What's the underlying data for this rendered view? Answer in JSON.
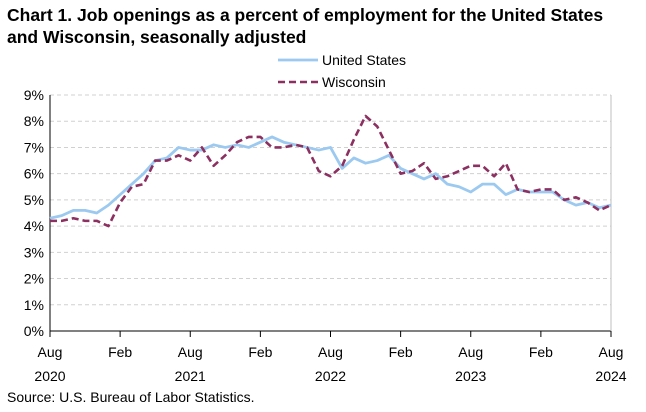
{
  "chart_data": {
    "type": "line",
    "title_line1": "Chart 1. Job openings as a percent of employment for the United States",
    "title_line2": "and Wisconsin, seasonally adjusted",
    "xlabel": "",
    "ylabel": "",
    "ylim": [
      0,
      9
    ],
    "yticks": [
      0,
      1,
      2,
      3,
      4,
      5,
      6,
      7,
      8,
      9
    ],
    "ytick_labels": [
      "0%",
      "1%",
      "2%",
      "3%",
      "4%",
      "5%",
      "6%",
      "7%",
      "8%",
      "9%"
    ],
    "x_ticks": [
      {
        "index": 0,
        "month": "Aug",
        "year": "2020"
      },
      {
        "index": 6,
        "month": "Feb",
        "year": ""
      },
      {
        "index": 12,
        "month": "Aug",
        "year": "2021"
      },
      {
        "index": 18,
        "month": "Feb",
        "year": ""
      },
      {
        "index": 24,
        "month": "Aug",
        "year": "2022"
      },
      {
        "index": 30,
        "month": "Feb",
        "year": ""
      },
      {
        "index": 36,
        "month": "Aug",
        "year": "2023"
      },
      {
        "index": 42,
        "month": "Feb",
        "year": ""
      },
      {
        "index": 48,
        "month": "Aug",
        "year": "2024"
      }
    ],
    "x_start": "Aug 2020",
    "x_end": "Aug 2024",
    "grid": true,
    "legend_position": "top-right",
    "series": [
      {
        "name": "United States",
        "style": "solid",
        "color": "#9cc9f0",
        "values": [
          4.3,
          4.4,
          4.6,
          4.6,
          4.5,
          4.8,
          5.2,
          5.6,
          6.0,
          6.5,
          6.6,
          7.0,
          6.9,
          6.9,
          7.1,
          7.0,
          7.1,
          7.0,
          7.2,
          7.4,
          7.2,
          7.1,
          7.0,
          6.9,
          7.0,
          6.2,
          6.6,
          6.4,
          6.5,
          6.7,
          6.2,
          6.0,
          5.8,
          6.0,
          5.6,
          5.5,
          5.3,
          5.6,
          5.6,
          5.2,
          5.4,
          5.3,
          5.3,
          5.3,
          5.0,
          4.8,
          4.9,
          4.7,
          4.8
        ]
      },
      {
        "name": "Wisconsin",
        "style": "dashed",
        "color": "#8b3060",
        "values": [
          4.2,
          4.2,
          4.3,
          4.2,
          4.2,
          4.0,
          4.9,
          5.5,
          5.6,
          6.5,
          6.5,
          6.7,
          6.5,
          7.0,
          6.3,
          6.7,
          7.2,
          7.4,
          7.4,
          7.0,
          7.0,
          7.1,
          7.0,
          6.1,
          5.9,
          6.3,
          7.3,
          8.2,
          7.8,
          6.9,
          6.0,
          6.1,
          6.4,
          5.8,
          5.9,
          6.1,
          6.3,
          6.3,
          5.9,
          6.4,
          5.4,
          5.3,
          5.4,
          5.4,
          5.0,
          5.1,
          4.9,
          4.6,
          4.8
        ]
      }
    ]
  },
  "source": "Source: U.S. Bureau of Labor Statistics."
}
